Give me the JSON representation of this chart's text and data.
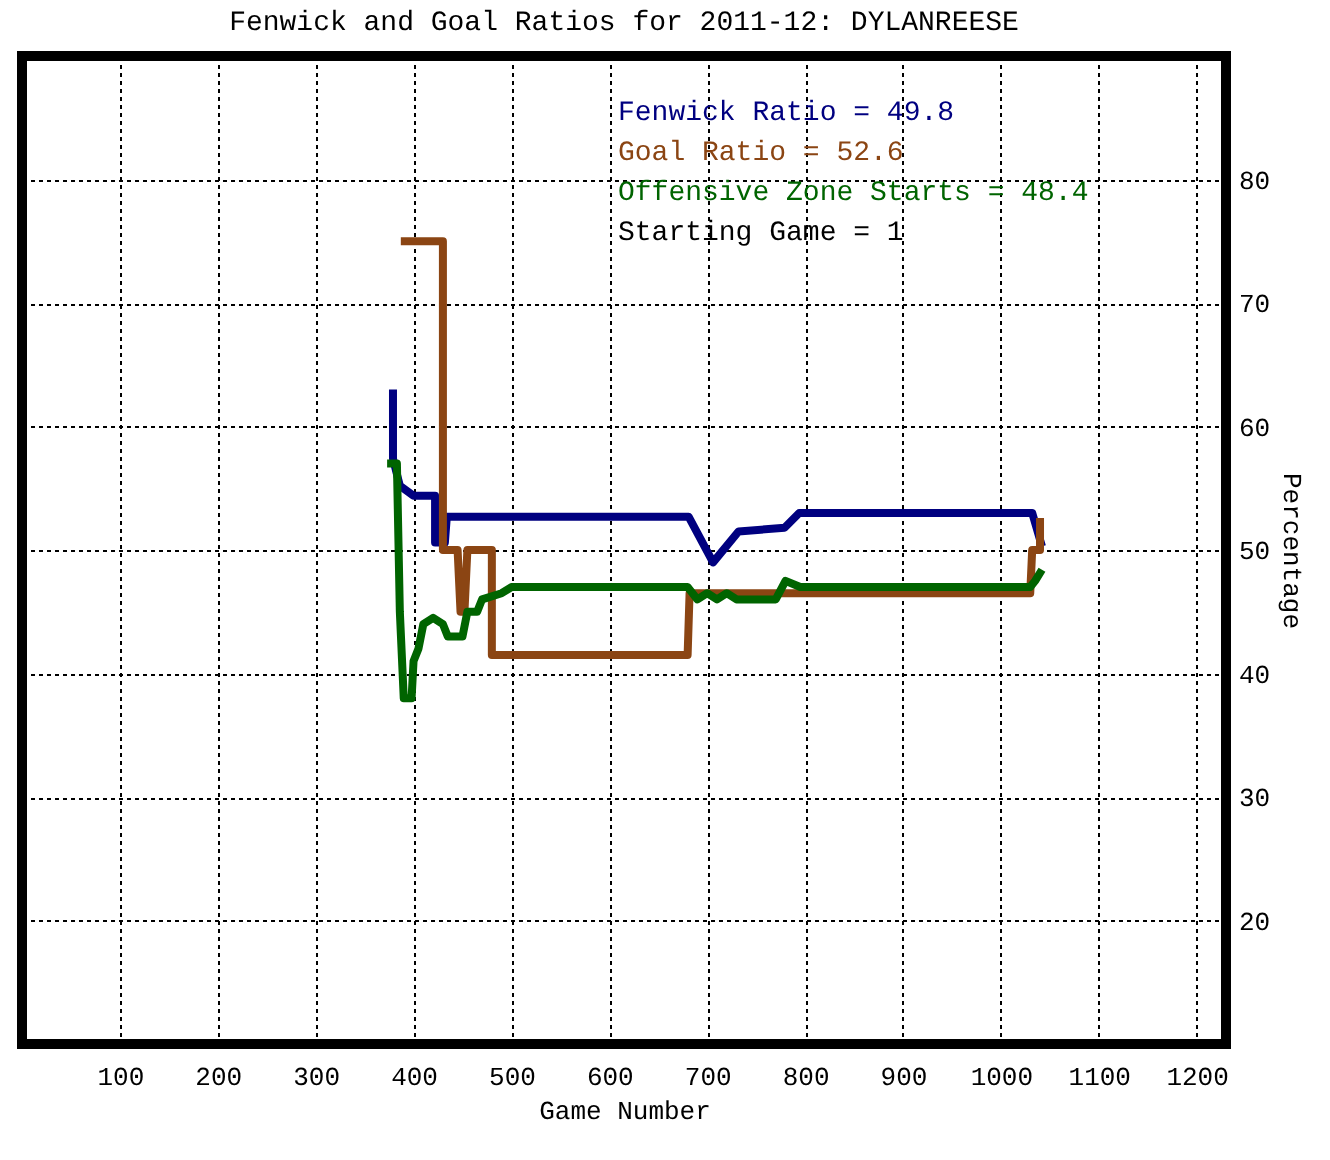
{
  "chart_data": {
    "type": "line",
    "title": "Fenwick and Goal Ratios for 2011-12: DYLANREESE",
    "xlabel": "Game Number",
    "ylabel": "Percentage",
    "xlim": [
      0,
      1230
    ],
    "xticks": [
      100,
      200,
      300,
      400,
      500,
      600,
      700,
      800,
      900,
      1000,
      1100,
      1200
    ],
    "ylim": [
      10,
      90
    ],
    "yticks": [
      20,
      30,
      40,
      50,
      60,
      70,
      80
    ],
    "grid": true,
    "legend": "top right",
    "annotations": [
      "Starting Game = 1"
    ],
    "series": [
      {
        "name": "Fenwick Ratio = 49.8",
        "color": "#000080",
        "x": [
          379,
          379,
          386,
          400,
          422,
          422,
          432,
          434,
          451,
          681,
          706,
          732,
          779,
          794,
          1032,
          1042
        ],
        "values": [
          63,
          57.4,
          55.2,
          54.4,
          54.4,
          50.6,
          50.6,
          52.7,
          52.7,
          52.7,
          49,
          51.5,
          51.8,
          53,
          53,
          50.3
        ]
      },
      {
        "name": "Goal Ratio = 52.6",
        "color": "#8b4513",
        "x": [
          387,
          430,
          430,
          445,
          448,
          452,
          455,
          480,
          480,
          680,
          682,
          1030,
          1032,
          1040,
          1040
        ],
        "values": [
          75,
          75,
          50,
          50,
          45,
          45,
          50,
          50,
          41.5,
          41.5,
          46.5,
          46.5,
          50,
          50,
          52.6
        ]
      },
      {
        "name": "Offensive Zone Starts = 48.4",
        "color": "#006400",
        "x": [
          373,
          383,
          386,
          390,
          398,
          400,
          405,
          410,
          420,
          430,
          435,
          450,
          455,
          465,
          470,
          490,
          500,
          680,
          690,
          700,
          710,
          720,
          730,
          770,
          780,
          795,
          1030,
          1035,
          1042
        ],
        "values": [
          57,
          57,
          45,
          38,
          38,
          41,
          42,
          44,
          44.5,
          44,
          43,
          43,
          45,
          45,
          46,
          46.5,
          47,
          47,
          46,
          46.5,
          46,
          46.5,
          46,
          46,
          47.5,
          47,
          47,
          47.5,
          48.4
        ]
      }
    ]
  }
}
